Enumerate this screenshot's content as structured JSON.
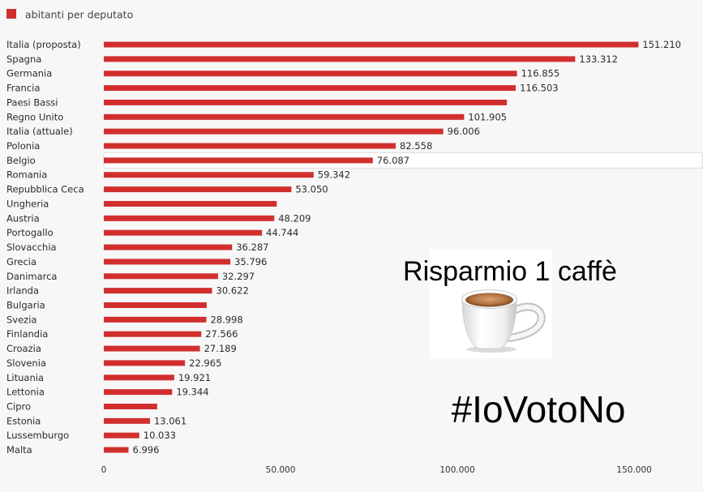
{
  "colors": {
    "bar": "#d12f2e",
    "background": "#f7f7f7",
    "highlight": "#ffffff",
    "highlight_border": "#dcdcdc",
    "overlay_panel": "#ffffff"
  },
  "chart_data": {
    "type": "bar",
    "orientation": "horizontal",
    "categories": [
      "Italia (proposta)",
      "Spagna",
      "Germania",
      "Francia",
      "Paesi Bassi",
      "Regno Unito",
      "Italia (attuale)",
      "Polonia",
      "Belgio",
      "Romania",
      "Repubblica Ceca",
      "Ungheria",
      "Austria",
      "Portogallo",
      "Slovacchia",
      "Grecia",
      "Danimarca",
      "Irlanda",
      "Bulgaria",
      "Svezia",
      "Finlandia",
      "Croazia",
      "Slovenia",
      "Lituania",
      "Lettonia",
      "Cipro",
      "Estonia",
      "Lussemburgo",
      "Malta"
    ],
    "series": [
      {
        "name": "abitanti per deputato",
        "values": [
          151210,
          133312,
          116855,
          116503,
          114000,
          101905,
          96006,
          82558,
          76087,
          59342,
          53050,
          48900,
          48209,
          44744,
          36287,
          35796,
          32297,
          30622,
          29100,
          28998,
          27566,
          27189,
          22965,
          19921,
          19344,
          15100,
          13061,
          10033,
          6996
        ]
      }
    ],
    "value_labels": [
      "151.210",
      "133.312",
      "116.855",
      "116.503",
      null,
      "101.905",
      "96.006",
      "82.558",
      "76.087",
      "59.342",
      "53.050",
      null,
      "48.209",
      "44.744",
      "36.287",
      "35.796",
      "32.297",
      "30.622",
      null,
      "28.998",
      "27.566",
      "27.189",
      "22.965",
      "19.921",
      "19.344",
      null,
      "13.061",
      "10.033",
      "6.996"
    ],
    "xlim": [
      0,
      169000
    ],
    "x_ticks": [
      0,
      50000,
      100000,
      150000
    ],
    "x_tick_labels": [
      "0",
      "50.000",
      "100.000",
      "150.000"
    ],
    "grid": false,
    "legend_position": "top-left",
    "highlighted_index": 8
  },
  "overlay": {
    "caption": "Risparmio 1 caffè",
    "image_icon": "coffee-cup-icon",
    "hashtag": "#IoVotoNo"
  }
}
